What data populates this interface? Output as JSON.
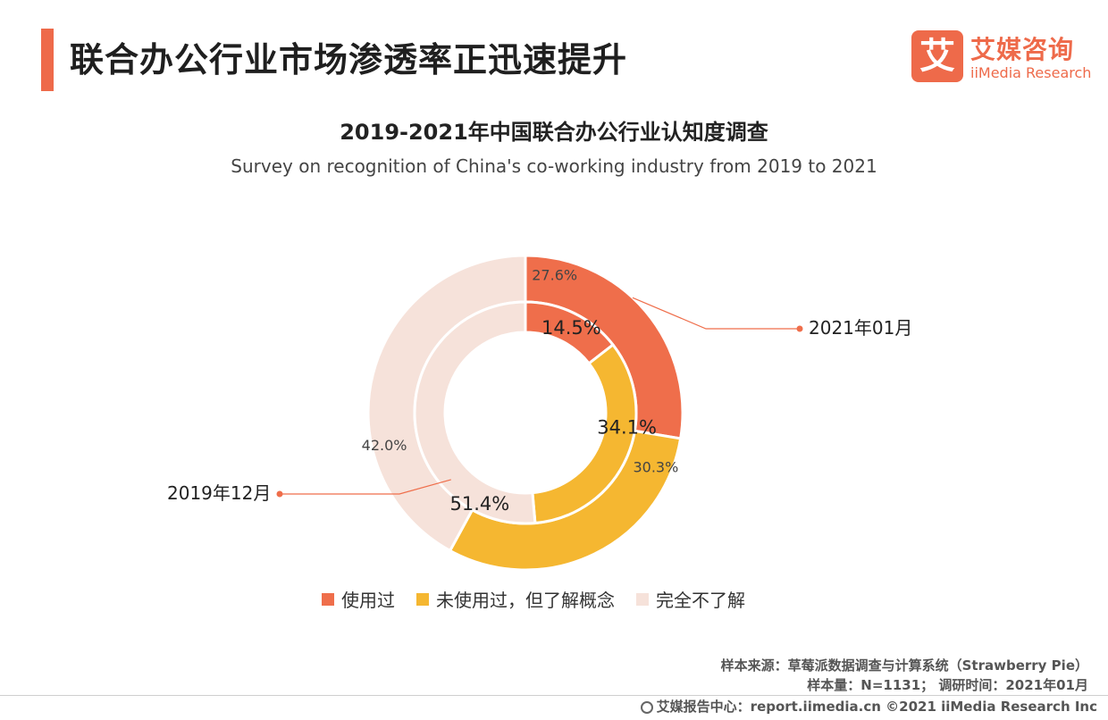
{
  "header": {
    "title": "联合办公行业市场渗透率正迅速提升",
    "logo_mark": "艾",
    "logo_cn": "艾媒咨询",
    "logo_en": "iiMedia Research"
  },
  "chart_data": {
    "type": "donut",
    "title": "2019-2021年中国联合办公行业认知度调查",
    "subtitle": "Survey on recognition of China's co-working industry from 2019 to 2021",
    "categories": [
      "使用过",
      "未使用过，但了解概念",
      "完全不了解"
    ],
    "colors": [
      "#ef6e4b",
      "#f5b731",
      "#f6e2da"
    ],
    "series": [
      {
        "name": "2021年01月",
        "ring": "outer",
        "values": [
          27.6,
          30.3,
          42.0
        ],
        "labels": [
          "27.6%",
          "30.3%",
          "42.0%"
        ]
      },
      {
        "name": "2019年12月",
        "ring": "inner",
        "values": [
          14.5,
          34.1,
          51.4
        ],
        "labels": [
          "14.5%",
          "34.1%",
          "51.4%"
        ]
      }
    ],
    "unit": "%",
    "legend_position": "bottom"
  },
  "source": {
    "line1": "样本来源：草莓派数据调查与计算系统（Strawberry Pie）",
    "line2": "样本量：N=1131；  调研时间：2021年01月"
  },
  "footer": {
    "text": "艾媒报告中心：report.iimedia.cn   ©2021  iiMedia Research  Inc"
  }
}
